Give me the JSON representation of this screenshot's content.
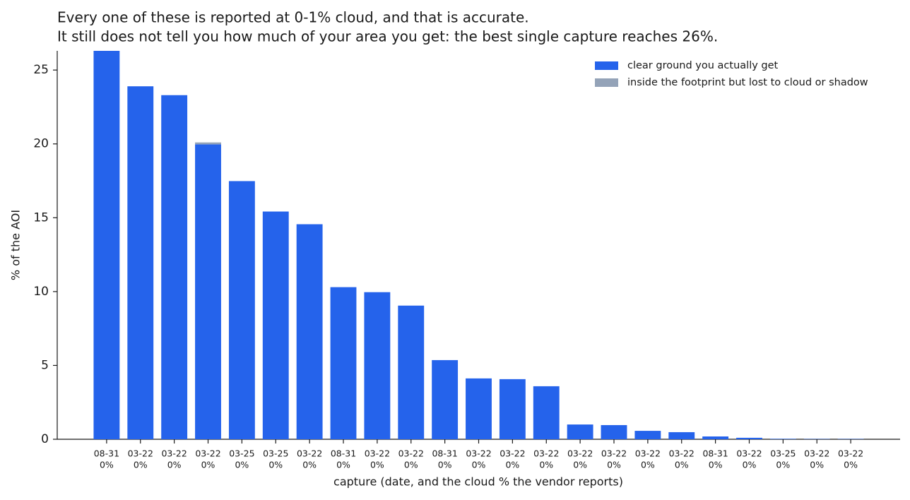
{
  "chart_data": {
    "type": "stacked_bar",
    "title": "Every one of these is reported at 0-1% cloud, and that is accurate.",
    "subtitle": "It still does not tell you how much of your area you get: the best single capture reaches 26%.",
    "x_label": "capture (date, and the cloud % the vendor reports)",
    "y_label": "% of the AOI",
    "categories": [
      [
        "08-31",
        "0%"
      ],
      [
        "03-22",
        "0%"
      ],
      [
        "03-22",
        "0%"
      ],
      [
        "03-22",
        "0%"
      ],
      [
        "03-25",
        "0%"
      ],
      [
        "03-25",
        "0%"
      ],
      [
        "03-22",
        "0%"
      ],
      [
        "08-31",
        "0%"
      ],
      [
        "03-22",
        "0%"
      ],
      [
        "03-22",
        "0%"
      ],
      [
        "08-31",
        "0%"
      ],
      [
        "03-22",
        "0%"
      ],
      [
        "03-22",
        "0%"
      ],
      [
        "03-22",
        "0%"
      ],
      [
        "03-22",
        "0%"
      ],
      [
        "03-22",
        "0%"
      ],
      [
        "03-22",
        "0%"
      ],
      [
        "03-22",
        "0%"
      ],
      [
        "08-31",
        "0%"
      ],
      [
        "03-22",
        "0%"
      ],
      [
        "03-25",
        "0%"
      ],
      [
        "03-22",
        "0%"
      ],
      [
        "03-22",
        "0%"
      ]
    ],
    "series": [
      {
        "name": "clear ground you actually get",
        "color": "#2563eb",
        "values": [
          26.3,
          23.9,
          23.3,
          19.97,
          17.48,
          15.42,
          14.56,
          10.3,
          9.96,
          9.05,
          5.36,
          4.12,
          4.07,
          3.59,
          1.0,
          0.96,
          0.57,
          0.48,
          0.19,
          0.1,
          0.03,
          0.02,
          0.02
        ]
      },
      {
        "name": "inside the footprint but lost to cloud or shadow",
        "color": "#94a3b8",
        "values": [
          0,
          0,
          0,
          0.13,
          0,
          0,
          0,
          0,
          0,
          0,
          0,
          0,
          0,
          0,
          0,
          0,
          0,
          0,
          0,
          0,
          0,
          0,
          0
        ]
      }
    ],
    "ylim": [
      0,
      26.3
    ],
    "yticks": [
      0,
      5,
      10,
      15,
      20,
      25
    ],
    "legend": "upper right"
  }
}
